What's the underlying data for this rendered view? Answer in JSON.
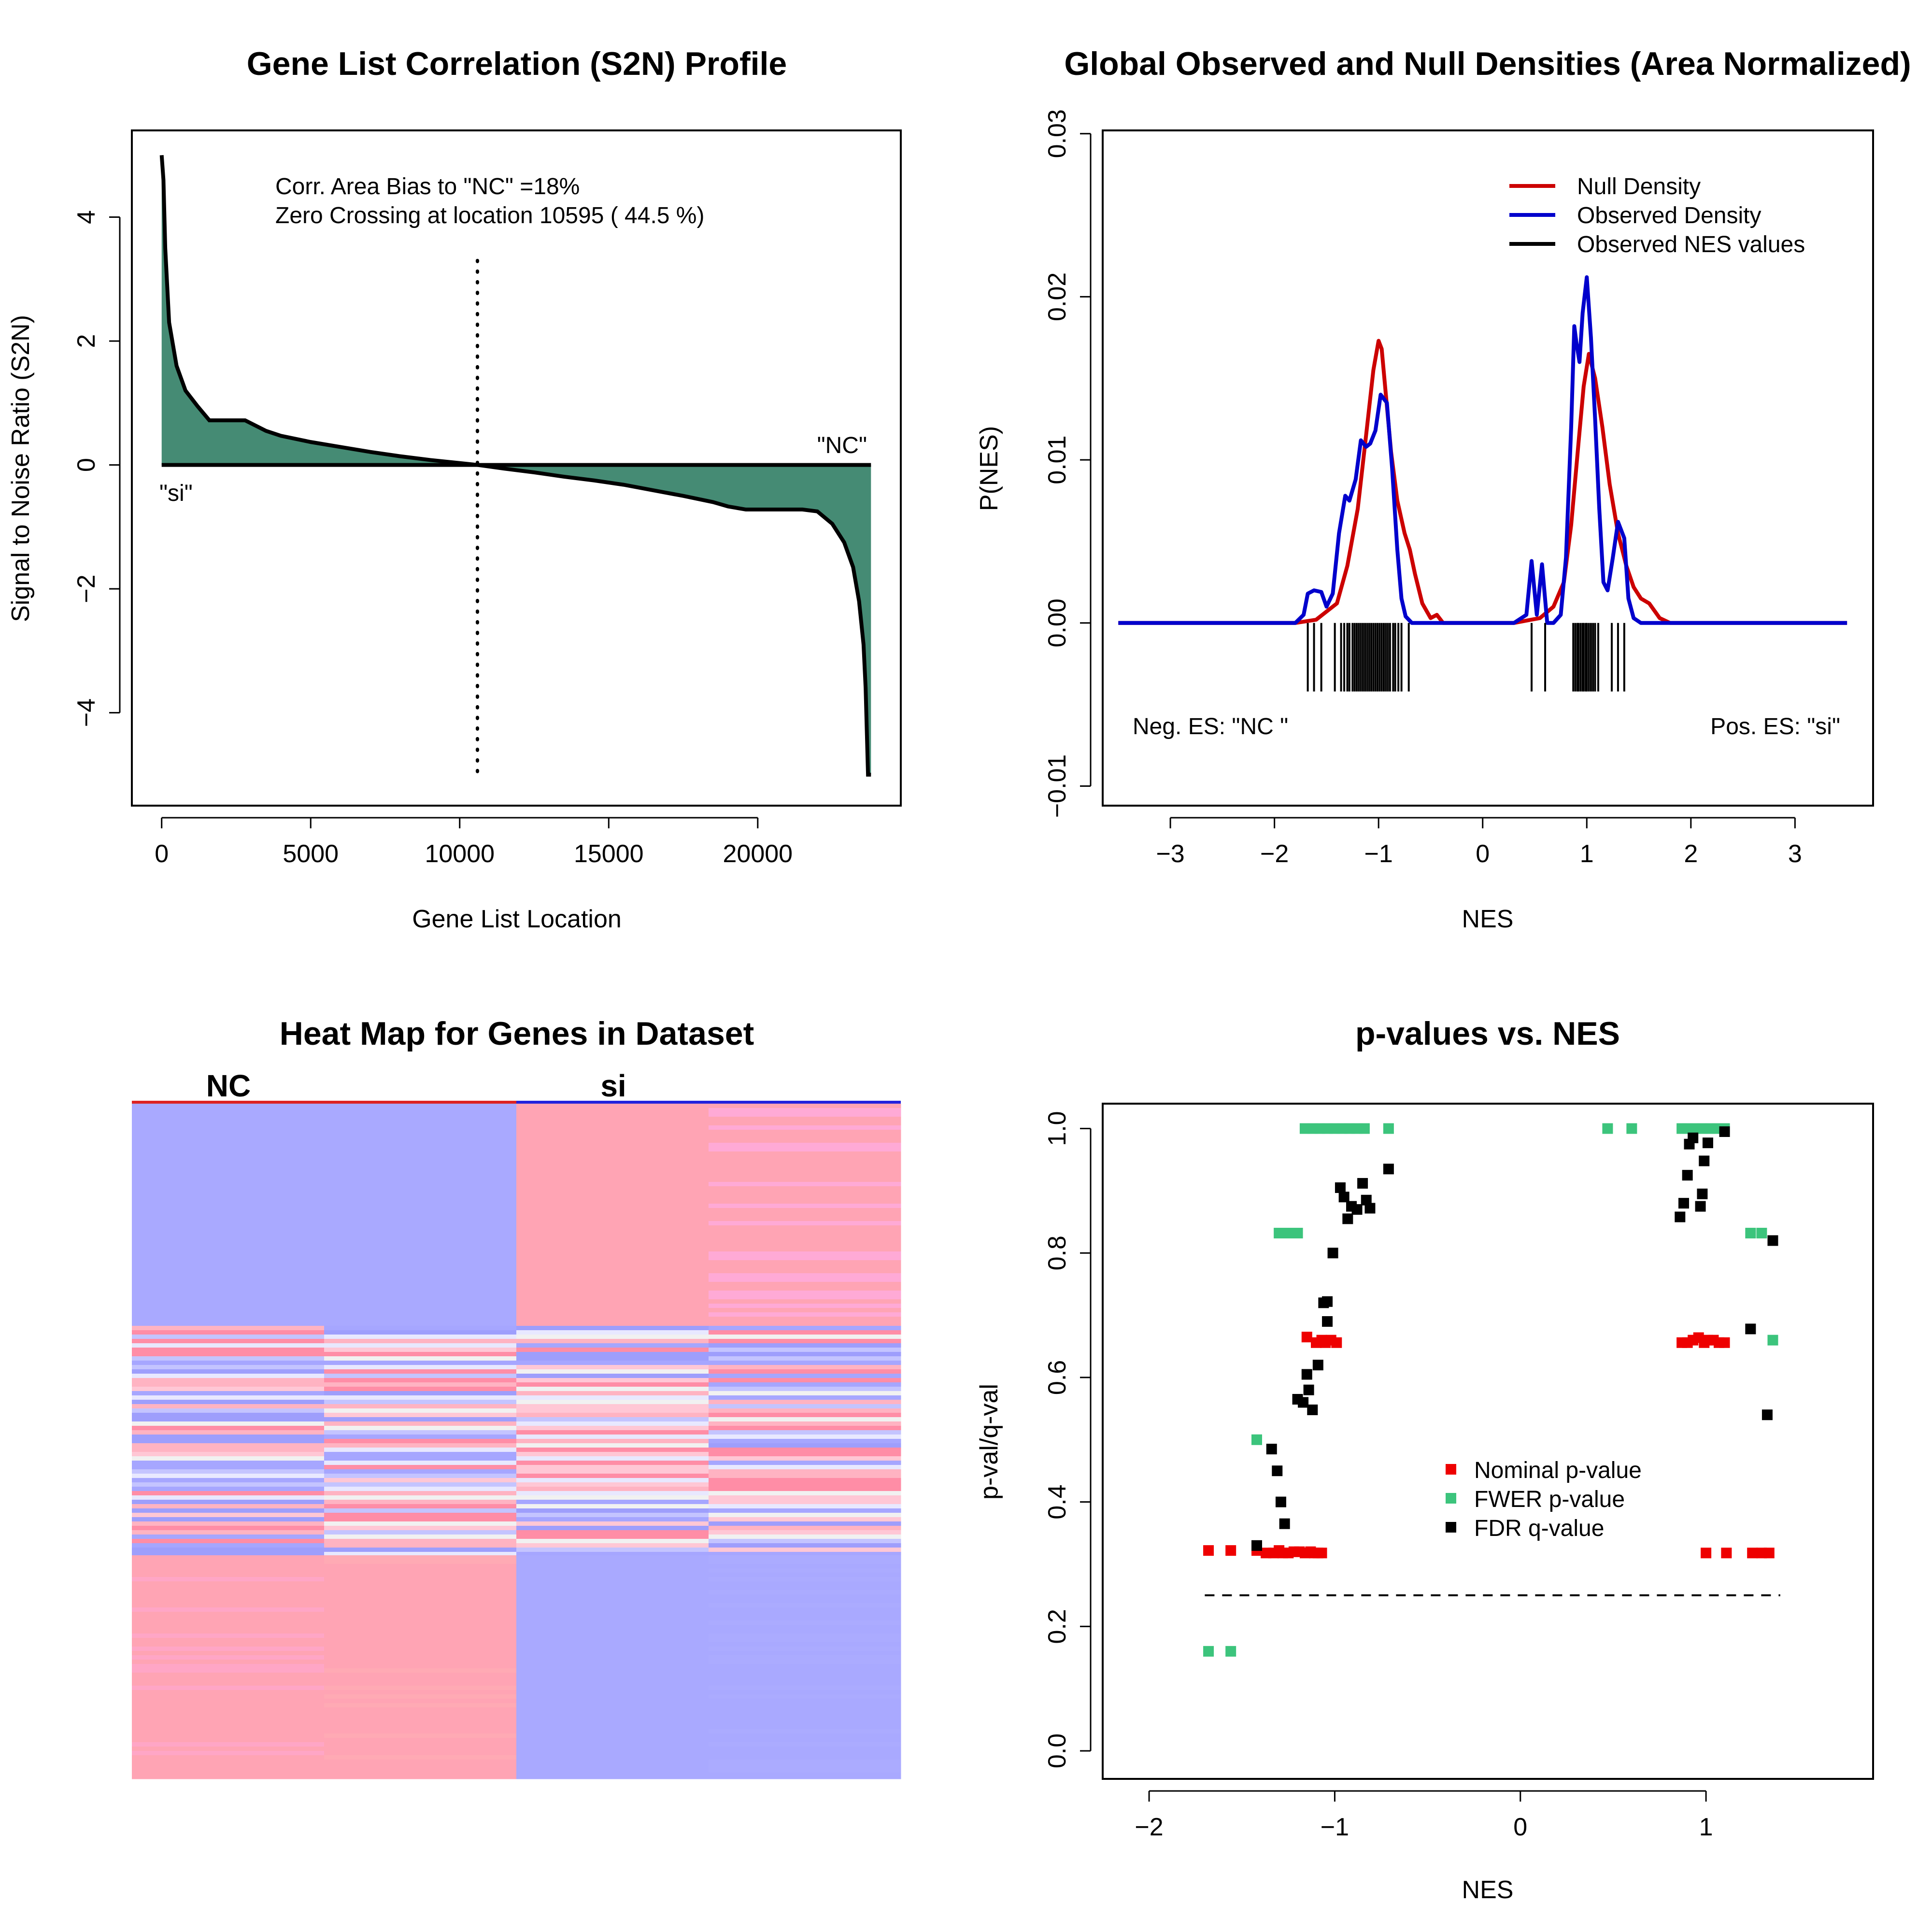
{
  "chart_data": [
    {
      "type": "area",
      "title": "Gene List Correlation (S2N) Profile",
      "xlabel": "Gene List Location",
      "ylabel": "Signal to Noise Ratio (S2N)",
      "xlim": [
        -1000,
        24800
      ],
      "ylim": [
        -5.5,
        5.4
      ],
      "xticks": [
        0,
        5000,
        10000,
        15000,
        20000
      ],
      "yticks": [
        -4,
        -2,
        0,
        2,
        4
      ],
      "xtick_labels": [
        "0",
        "5000",
        "10000",
        "15000",
        "20000"
      ],
      "ytick_labels": [
        "−4",
        "−2",
        "0",
        "2",
        "4"
      ],
      "fill_color": "#458b74",
      "x": [
        0,
        60,
        120,
        250,
        500,
        800,
        1200,
        1600,
        2200,
        2800,
        3500,
        4000,
        5000,
        6000,
        7000,
        8000,
        9000,
        10000,
        10595,
        11500,
        12500,
        13500,
        14500,
        15500,
        16500,
        17500,
        18500,
        19000,
        19600,
        20500,
        21500,
        22000,
        22500,
        22900,
        23200,
        23400,
        23550,
        23620,
        23660,
        23700,
        23750,
        23800
      ],
      "y": [
        5.0,
        4.6,
        3.5,
        2.3,
        1.6,
        1.2,
        0.95,
        0.72,
        0.72,
        0.72,
        0.55,
        0.47,
        0.37,
        0.29,
        0.21,
        0.14,
        0.08,
        0.03,
        0.0,
        -0.06,
        -0.12,
        -0.19,
        -0.25,
        -0.32,
        -0.41,
        -0.5,
        -0.6,
        -0.67,
        -0.72,
        -0.72,
        -0.72,
        -0.75,
        -0.95,
        -1.25,
        -1.65,
        -2.2,
        -2.9,
        -3.6,
        -4.3,
        -5.0,
        -5.0,
        -5.0
      ],
      "vline": 10595,
      "annotations": [
        "Corr. Area Bias to \"NC\" =18%",
        "Zero Crossing at location  10595  ( 44.5  %)"
      ],
      "label_pos": "\"NC\"",
      "label_neg": "\"si\""
    },
    {
      "type": "line",
      "title": "Global Observed and Null Densities (Area Normalized)",
      "xlabel": "NES",
      "ylabel": "P(NES)",
      "xlim": [
        -3.65,
        3.75
      ],
      "ylim": [
        -0.0112,
        0.0302
      ],
      "xticks": [
        -3,
        -2,
        -1,
        0,
        1,
        2,
        3
      ],
      "xtick_labels": [
        "−3",
        "−2",
        "−1",
        "0",
        "1",
        "2",
        "3"
      ],
      "yticks": [
        -0.01,
        0.0,
        0.01,
        0.02,
        0.03
      ],
      "ytick_labels": [
        "−0.01",
        "0.00",
        "0.01",
        "0.02",
        "0.03"
      ],
      "series": [
        {
          "name": "Null Density",
          "color": "#cc0000",
          "x": [
            -3.5,
            -1.8,
            -1.6,
            -1.4,
            -1.3,
            -1.2,
            -1.12,
            -1.05,
            -1.0,
            -0.97,
            -0.93,
            -0.88,
            -0.82,
            -0.75,
            -0.7,
            -0.65,
            -0.58,
            -0.5,
            -0.44,
            -0.38,
            0.3,
            0.55,
            0.68,
            0.78,
            0.85,
            0.92,
            0.97,
            1.02,
            1.08,
            1.15,
            1.22,
            1.3,
            1.38,
            1.45,
            1.52,
            1.6,
            1.7,
            1.8,
            3.5
          ],
          "y": [
            0,
            0,
            0.0002,
            0.0012,
            0.0035,
            0.007,
            0.0115,
            0.0155,
            0.0173,
            0.0168,
            0.014,
            0.0105,
            0.0075,
            0.0055,
            0.0045,
            0.003,
            0.0012,
            0.0003,
            0.0005,
            0,
            0,
            0.0003,
            0.001,
            0.0025,
            0.006,
            0.011,
            0.0145,
            0.0165,
            0.015,
            0.012,
            0.0085,
            0.0055,
            0.0035,
            0.0022,
            0.0015,
            0.0012,
            0.0003,
            0,
            0
          ]
        },
        {
          "name": "Observed Density",
          "color": "#0000cc",
          "x": [
            -3.5,
            -1.8,
            -1.72,
            -1.68,
            -1.62,
            -1.55,
            -1.5,
            -1.44,
            -1.38,
            -1.32,
            -1.28,
            -1.22,
            -1.17,
            -1.12,
            -1.08,
            -1.03,
            -0.98,
            -0.92,
            -0.87,
            -0.82,
            -0.78,
            -0.74,
            -0.68,
            -0.6,
            -0.4,
            0.3,
            0.42,
            0.47,
            0.52,
            0.57,
            0.62,
            0.68,
            0.75,
            0.8,
            0.85,
            0.88,
            0.9,
            0.93,
            0.96,
            1.0,
            1.04,
            1.08,
            1.12,
            1.16,
            1.2,
            1.25,
            1.3,
            1.36,
            1.4,
            1.45,
            1.52,
            1.65,
            3.5
          ],
          "y": [
            0,
            0,
            0.0005,
            0.0018,
            0.002,
            0.0019,
            0.001,
            0.0018,
            0.0055,
            0.0078,
            0.0075,
            0.0088,
            0.0112,
            0.0108,
            0.011,
            0.0118,
            0.014,
            0.0135,
            0.0095,
            0.0045,
            0.0015,
            0.0004,
            0,
            0,
            0,
            0,
            0.0005,
            0.0038,
            0.0005,
            0.0036,
            0.0,
            0.0,
            0.0005,
            0.004,
            0.012,
            0.0182,
            0.0172,
            0.016,
            0.019,
            0.0212,
            0.0175,
            0.0125,
            0.007,
            0.0025,
            0.002,
            0.004,
            0.0062,
            0.0052,
            0.0015,
            0.0003,
            0,
            0,
            0
          ]
        },
        {
          "name": "Observed NES values",
          "color": "#000000",
          "values": [
            -1.68,
            -1.62,
            -1.55,
            -1.42,
            -1.36,
            -1.33,
            -1.3,
            -1.28,
            -1.25,
            -1.23,
            -1.21,
            -1.19,
            -1.17,
            -1.15,
            -1.13,
            -1.11,
            -1.09,
            -1.07,
            -1.05,
            -1.03,
            -1.01,
            -0.99,
            -0.97,
            -0.95,
            -0.93,
            -0.91,
            -0.89,
            -0.86,
            -0.84,
            -0.81,
            -0.78,
            -0.71,
            0.47,
            0.6,
            0.87,
            0.89,
            0.91,
            0.92,
            0.94,
            0.96,
            0.97,
            0.99,
            1.0,
            1.02,
            1.04,
            1.06,
            1.08,
            1.11,
            1.24,
            1.3,
            1.36
          ]
        }
      ],
      "annotations": [
        "Neg. ES: \"NC \"",
        "Pos. ES: \"si\""
      ],
      "legend_position": "top-right"
    },
    {
      "type": "heatmap",
      "title": "Heat Map for Genes in Dataset",
      "groups": [
        "NC",
        "si"
      ],
      "group_colors": [
        "#dd2222",
        "#2222dd"
      ],
      "columns": 4,
      "base_colors": [
        "#a9a9ff",
        "#ffa4b4"
      ],
      "row_colors_section1": [
        [
          "#a9a9ff",
          "#a9a9ff",
          "#ffa4b4",
          "#ffa4b4"
        ],
        [
          "#a9a9ff",
          "#a9a9ff",
          "#ffa4b4",
          "#ffaad6"
        ]
      ],
      "row_colors_section2": [
        "#ff8da6",
        "#ffc7d5",
        "#e8e8ff",
        "#c4c4ff",
        "#a6a6ff",
        "#ffb3c2",
        "#f1f1f1",
        "#9e9efc"
      ],
      "row_colors_section3": [
        [
          "#ffa4b4",
          "#ffa4b4",
          "#a9a9ff",
          "#a9a9ff"
        ],
        [
          "#ffa6c6",
          "#ffaab4",
          "#a9a9ff",
          "#ababff"
        ]
      ]
    },
    {
      "type": "scatter",
      "title": "p-values vs. NES",
      "xlabel": "NES",
      "ylabel": "p-val/q-val",
      "xlim": [
        -2.25,
        1.9
      ],
      "ylim": [
        -0.045,
        1.04
      ],
      "xticks": [
        -2,
        -1,
        0,
        1
      ],
      "xtick_labels": [
        "−2",
        "−1",
        "0",
        "1"
      ],
      "yticks": [
        0.0,
        0.2,
        0.4,
        0.6,
        0.8,
        1.0
      ],
      "ytick_labels": [
        "0.0",
        "0.2",
        "0.4",
        "0.6",
        "0.8",
        "1.0"
      ],
      "threshold": 0.25,
      "series": [
        {
          "name": "Nominal p-value",
          "color": "#ee0000",
          "points": [
            [
              -1.68,
              0.322
            ],
            [
              -1.56,
              0.322
            ],
            [
              -1.42,
              0.322
            ],
            [
              -1.37,
              0.318
            ],
            [
              -1.33,
              0.318
            ],
            [
              -1.3,
              0.322
            ],
            [
              -1.28,
              0.318
            ],
            [
              -1.25,
              0.318
            ],
            [
              -1.22,
              0.32
            ],
            [
              -1.19,
              0.32
            ],
            [
              -1.16,
              0.318
            ],
            [
              -1.13,
              0.32
            ],
            [
              -1.11,
              0.318
            ],
            [
              -1.09,
              0.318
            ],
            [
              -1.07,
              0.318
            ],
            [
              -1.15,
              0.665
            ],
            [
              -1.1,
              0.656
            ],
            [
              -1.07,
              0.66
            ],
            [
              -1.05,
              0.656
            ],
            [
              -1.02,
              0.66
            ],
            [
              -0.99,
              0.656
            ],
            [
              0.87,
              0.656
            ],
            [
              0.9,
              0.656
            ],
            [
              0.93,
              0.66
            ],
            [
              0.96,
              0.664
            ],
            [
              0.99,
              0.656
            ],
            [
              1.01,
              0.66
            ],
            [
              1.04,
              0.66
            ],
            [
              1.07,
              0.656
            ],
            [
              1.1,
              0.656
            ],
            [
              1.0,
              0.318
            ],
            [
              1.11,
              0.318
            ],
            [
              1.25,
              0.318
            ],
            [
              1.3,
              0.318
            ],
            [
              1.34,
              0.318
            ]
          ]
        },
        {
          "name": "FWER p-value",
          "color": "#3cc47c",
          "points": [
            [
              -1.68,
              0.16
            ],
            [
              -1.56,
              0.16
            ],
            [
              -1.42,
              0.5
            ],
            [
              -1.3,
              0.832
            ],
            [
              -1.25,
              0.832
            ],
            [
              -1.2,
              0.832
            ],
            [
              -1.16,
              1.0
            ],
            [
              -1.12,
              1.0
            ],
            [
              -1.08,
              1.0
            ],
            [
              -1.04,
              1.0
            ],
            [
              -1.0,
              1.0
            ],
            [
              -0.96,
              1.0
            ],
            [
              -0.92,
              1.0
            ],
            [
              -0.88,
              1.0
            ],
            [
              -0.84,
              1.0
            ],
            [
              -0.71,
              1.0
            ],
            [
              0.47,
              1.0
            ],
            [
              0.6,
              1.0
            ],
            [
              0.87,
              1.0
            ],
            [
              0.9,
              1.0
            ],
            [
              0.94,
              1.0
            ],
            [
              0.98,
              1.0
            ],
            [
              1.02,
              1.0
            ],
            [
              1.06,
              1.0
            ],
            [
              1.1,
              1.0
            ],
            [
              1.24,
              0.832
            ],
            [
              1.3,
              0.832
            ],
            [
              1.36,
              0.66
            ]
          ]
        },
        {
          "name": "FDR q-value",
          "color": "#000000",
          "points": [
            [
              -1.42,
              0.33
            ],
            [
              -1.34,
              0.485
            ],
            [
              -1.31,
              0.45
            ],
            [
              -1.29,
              0.4
            ],
            [
              -1.27,
              0.365
            ],
            [
              -1.2,
              0.565
            ],
            [
              -1.17,
              0.56
            ],
            [
              -1.14,
              0.58
            ],
            [
              -1.15,
              0.605
            ],
            [
              -1.12,
              0.548
            ],
            [
              -1.09,
              0.62
            ],
            [
              -1.06,
              0.72
            ],
            [
              -1.04,
              0.722
            ],
            [
              -1.04,
              0.69
            ],
            [
              -1.01,
              0.8
            ],
            [
              -0.97,
              0.905
            ],
            [
              -0.95,
              0.89
            ],
            [
              -0.93,
              0.855
            ],
            [
              -0.91,
              0.875
            ],
            [
              -0.88,
              0.87
            ],
            [
              -0.85,
              0.912
            ],
            [
              -0.83,
              0.885
            ],
            [
              -0.81,
              0.872
            ],
            [
              -0.71,
              0.935
            ],
            [
              0.86,
              0.858
            ],
            [
              0.88,
              0.88
            ],
            [
              0.9,
              0.925
            ],
            [
              0.91,
              0.975
            ],
            [
              0.93,
              0.985
            ],
            [
              0.97,
              0.875
            ],
            [
              0.98,
              0.895
            ],
            [
              0.99,
              0.948
            ],
            [
              1.01,
              0.977
            ],
            [
              1.1,
              0.995
            ],
            [
              1.24,
              0.678
            ],
            [
              1.33,
              0.54
            ],
            [
              1.36,
              0.82
            ]
          ]
        }
      ],
      "legend_position": "center-right"
    }
  ]
}
